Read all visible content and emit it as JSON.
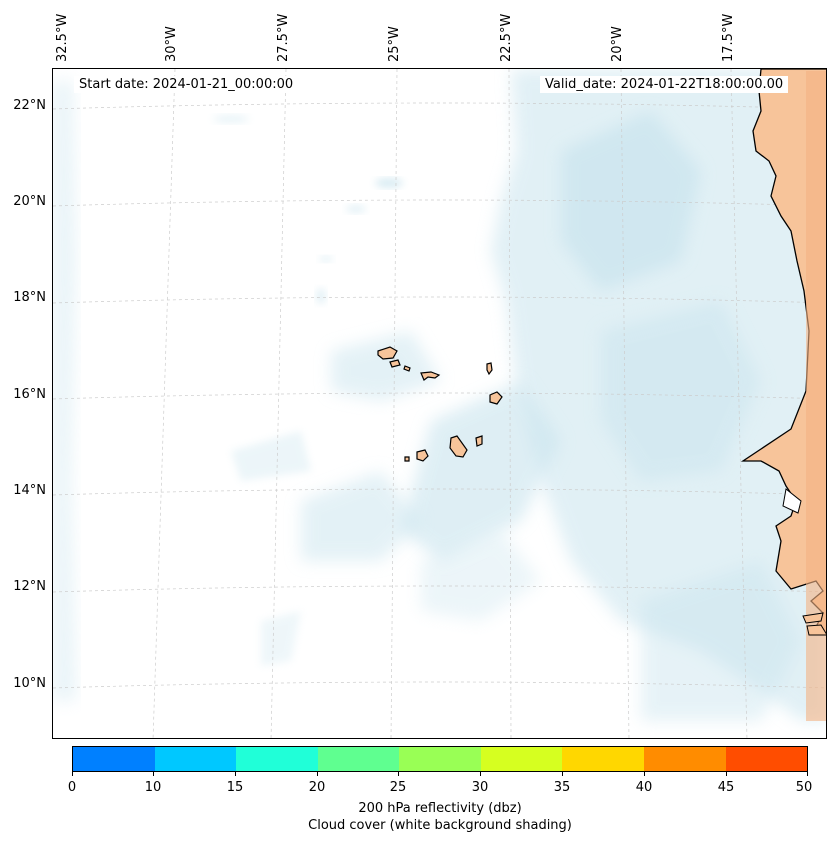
{
  "map": {
    "start_date": "Start date: 2024-01-21_00:00:00",
    "valid_date": "Valid_date: 2024-01-22T18:00:00.00",
    "longitude_labels": [
      "32.5°W",
      "30°W",
      "27.5°W",
      "25°W",
      "22.5°W",
      "20°W",
      "17.5°W"
    ],
    "latitude_labels": [
      "22°N",
      "20°N",
      "18°N",
      "16°N",
      "14°N",
      "12°N",
      "10°N"
    ],
    "land_color": "#f7c49a",
    "cloud_color": "#c9e4ee"
  },
  "colorbar": {
    "ticks": [
      "0",
      "10",
      "15",
      "20",
      "25",
      "30",
      "35",
      "40",
      "45",
      "50"
    ],
    "colors": [
      "#0080ff",
      "#00c8ff",
      "#20ffd8",
      "#5fff90",
      "#99ff55",
      "#d6ff20",
      "#ffd700",
      "#ff8c00",
      "#ff4d00"
    ],
    "label_line1": "200 hPa reflectivity (dbz)",
    "label_line2": "Cloud cover (white background shading)"
  }
}
